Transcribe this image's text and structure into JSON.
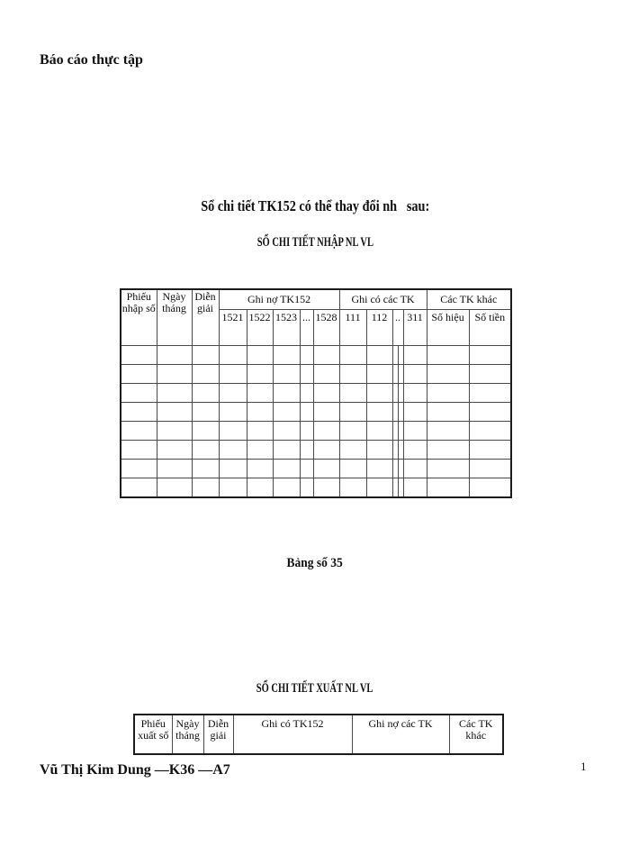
{
  "page": {
    "header_note": "Báo cáo thực tập",
    "footer_author": "Vũ Thị Kim Dung —K36 —A7",
    "page_number": "1"
  },
  "intro_line": "Sổ chi tiết TK152 có thể thay đổi nh   sau:",
  "caption": "Bảng số 35",
  "table_nhap": {
    "title": "SỔ CHI TIẾT NHẬP NL VL",
    "fixed_columns": [
      "Phiếu nhập số",
      "Ngày tháng",
      "Diễn giải"
    ],
    "groups": [
      {
        "label": "Ghi nợ TK152",
        "cols": [
          "1521",
          "1522",
          "1523",
          "...",
          "1528"
        ]
      },
      {
        "label": "Ghi có các TK",
        "cols": [
          "111",
          "112",
          "..",
          "311"
        ]
      },
      {
        "label": "Các TK khác",
        "cols": [
          "Số hiệu",
          "Số tiền"
        ]
      }
    ],
    "empty_row_count": 8
  },
  "table_xuat": {
    "title": "SỔ CHI TIẾT XUẤT NL VL",
    "columns": [
      "Phiếu xuất số",
      "Ngày tháng",
      "Diễn giải",
      "Ghi có TK152",
      "Ghi nợ các TK",
      "Các TK khác"
    ]
  }
}
